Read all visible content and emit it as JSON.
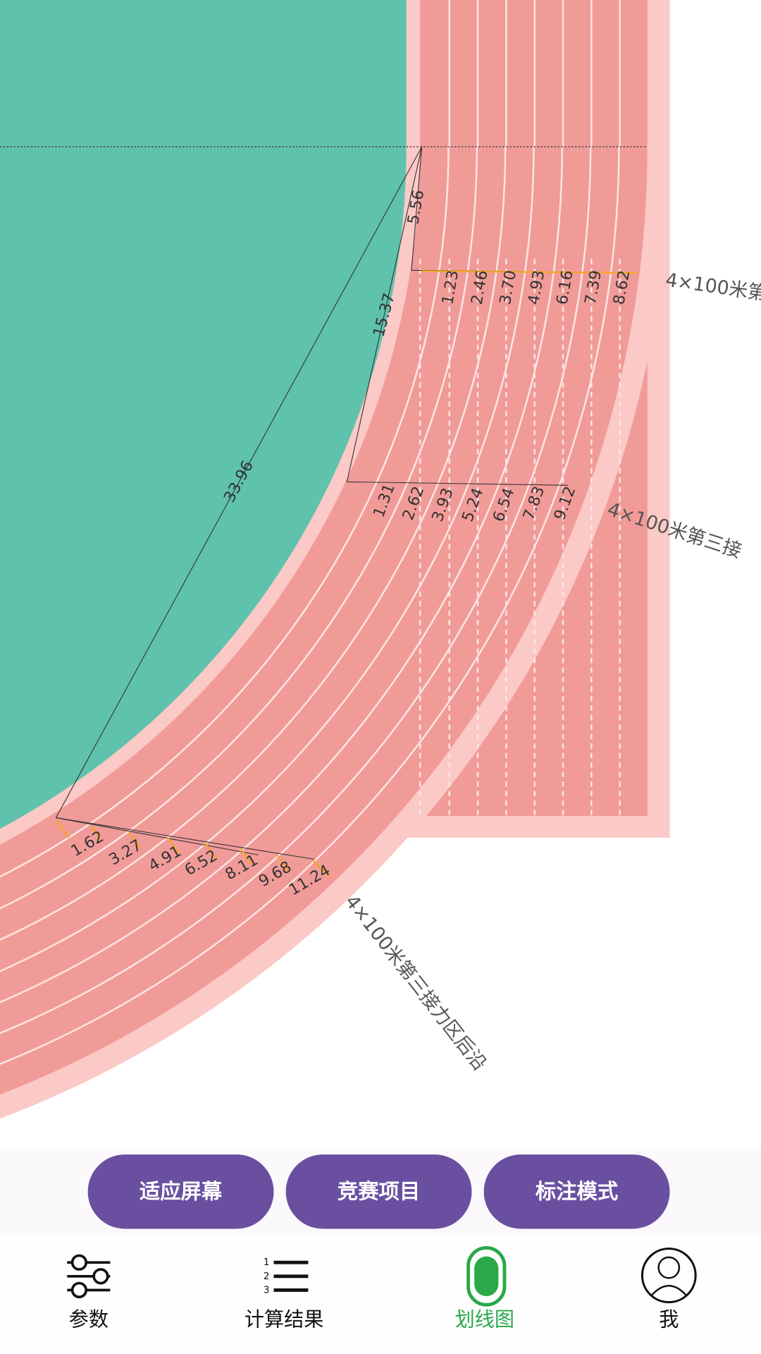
{
  "diagram": {
    "distances": [
      "5.56",
      "15.37",
      "33.96"
    ],
    "rows": [
      [
        "1.23",
        "2.46",
        "3.70",
        "4.93",
        "6.16",
        "7.39",
        "8.62"
      ],
      [
        "1.31",
        "2.62",
        "3.93",
        "5.24",
        "6.54",
        "7.83",
        "9.12"
      ],
      [
        "1.62",
        "3.27",
        "4.91",
        "6.52",
        "8.11",
        "9.68",
        "11.24"
      ]
    ],
    "zone_labels": [
      "4×100米第",
      "4×100米第三接",
      "4×100米第三接力区后沿"
    ]
  },
  "buttons": [
    "适应屏幕",
    "竞赛项目",
    "标注模式"
  ],
  "nav": [
    "参数",
    "计算结果",
    "划线图",
    "我"
  ]
}
